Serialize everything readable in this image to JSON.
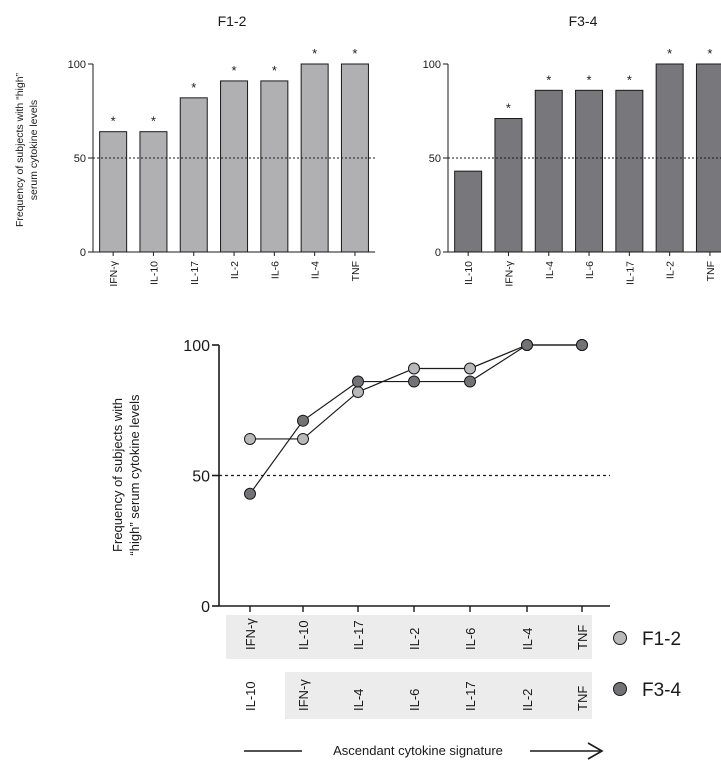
{
  "chart_data": [
    {
      "type": "bar",
      "title": "F1-2",
      "ylabel_line1": "Frequency of subjects with “high”",
      "ylabel_line2": "serum cytokine levels",
      "categories": [
        "IFN-γ",
        "IL-10",
        "IL-17",
        "IL-2",
        "IL-6",
        "IL-4",
        "TNF"
      ],
      "values": [
        64,
        64,
        82,
        91,
        91,
        100,
        100
      ],
      "significance": [
        "*",
        "*",
        "*",
        "*",
        "*",
        "*",
        "*"
      ],
      "yticks": [
        0,
        50,
        100
      ],
      "ylim": [
        0,
        100
      ],
      "reference_line": 50,
      "color": "#b0b0b3"
    },
    {
      "type": "bar",
      "title": "F3-4",
      "categories": [
        "IL-10",
        "IFN-γ",
        "IL-4",
        "IL-6",
        "IL-17",
        "IL-2",
        "TNF"
      ],
      "values": [
        43,
        71,
        86,
        86,
        86,
        100,
        100
      ],
      "significance": [
        "",
        "*",
        "*",
        "*",
        "*",
        "*",
        "*"
      ],
      "yticks": [
        0,
        50,
        100
      ],
      "ylim": [
        0,
        100
      ],
      "reference_line": 50,
      "color": "#78787c"
    },
    {
      "type": "line",
      "ylabel_line1": "Frequency of subjects with",
      "ylabel_line2": "“high” serum cytokine levels",
      "yticks": [
        0,
        50,
        100
      ],
      "ylim": [
        0,
        100
      ],
      "reference_line": 50,
      "xlabel": "Ascendant cytokine signature",
      "series": [
        {
          "name": "F1-2",
          "categories": [
            "IFN-γ",
            "IL-10",
            "IL-17",
            "IL-2",
            "IL-6",
            "IL-4",
            "TNF"
          ],
          "values": [
            64,
            64,
            82,
            91,
            91,
            100,
            100
          ],
          "color": "#b8b8bb"
        },
        {
          "name": "F3-4",
          "categories": [
            "IL-10",
            "IFN-γ",
            "IL-4",
            "IL-6",
            "IL-17",
            "IL-2",
            "TNF"
          ],
          "values": [
            43,
            71,
            86,
            86,
            86,
            100,
            100
          ],
          "color": "#737377"
        }
      ]
    }
  ]
}
